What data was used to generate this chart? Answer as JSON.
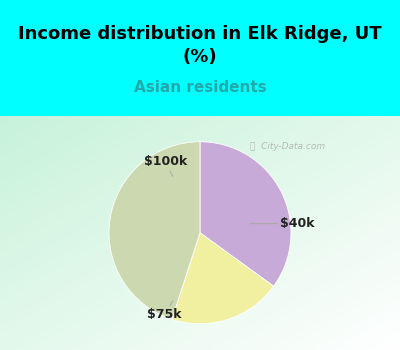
{
  "title": "Income distribution in Elk Ridge, UT\n(%)",
  "subtitle": "Asian residents",
  "title_color": "#000000",
  "subtitle_color": "#22aaaa",
  "top_bg_color": "#00ffff",
  "chart_bg_color": "#d8f0e8",
  "slices": [
    {
      "label": "$40k",
      "value": 35,
      "color": "#c8aad8"
    },
    {
      "label": "$100k",
      "value": 20,
      "color": "#f0f0a0"
    },
    {
      "label": "$75k",
      "value": 45,
      "color": "#ccd8b0"
    }
  ],
  "startangle": 90,
  "title_fontsize": 13,
  "subtitle_fontsize": 11,
  "label_fontsize": 9,
  "label_color": "#222222",
  "watermark": "City-Data.com",
  "watermark_color": "#aaaaaa"
}
